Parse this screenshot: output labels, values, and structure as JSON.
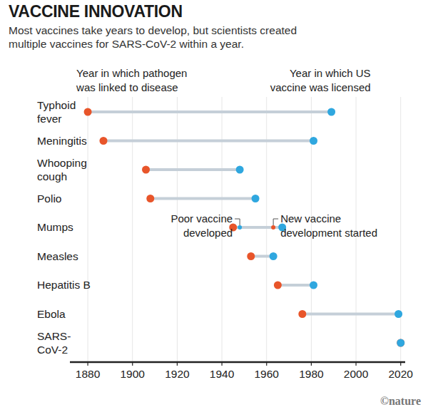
{
  "chart_data": {
    "type": "dumbbell",
    "orientation": "horizontal",
    "title": "VACCINE INNOVATION",
    "subtitle": [
      "Most vaccines take years to develop, but scientists created",
      "multiple vaccines for SARS-CoV-2 within a year."
    ],
    "categories": [
      "Typhoid fever",
      "Meningitis",
      "Whooping cough",
      "Polio",
      "Mumps",
      "Measles",
      "Hepatitis B",
      "Ebola",
      "SARS-CoV-2"
    ],
    "series": [
      {
        "name": "Year in which pathogen was linked to disease",
        "color": "#e8552a",
        "values": [
          1880,
          1887,
          1906,
          1908,
          1945,
          1953,
          1965,
          1976,
          2020
        ]
      },
      {
        "name": "Year in which US vaccine was licensed",
        "color": "#2fa7df",
        "values": [
          1989,
          1981,
          1948,
          1955,
          1967,
          1963,
          1981,
          2019,
          2020
        ]
      }
    ],
    "annotations": [
      {
        "text": "Poor vaccine developed",
        "category": "Mumps",
        "value": 1948,
        "color": "#2fa7df"
      },
      {
        "text": "New vaccine development started",
        "category": "Mumps",
        "value": 1963,
        "color": "#e8552a"
      }
    ],
    "xlim": [
      1872,
      2022
    ],
    "xticks": [
      1880,
      1900,
      1920,
      1940,
      1960,
      1980,
      2000,
      2020
    ],
    "grid": true,
    "credit": "©nature"
  }
}
